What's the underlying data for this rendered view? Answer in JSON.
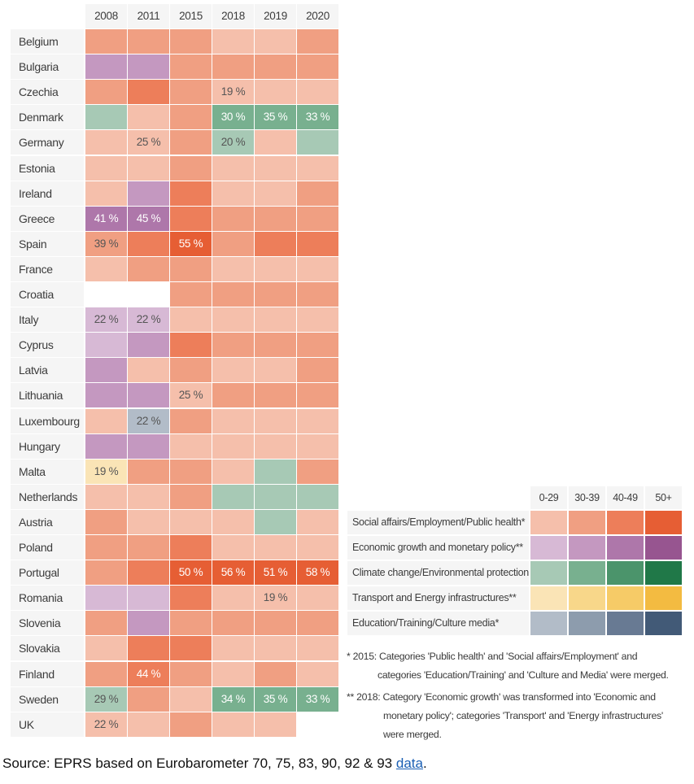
{
  "chart_data": {
    "type": "heatmap",
    "columns": [
      "2008",
      "2011",
      "2015",
      "2018",
      "2019",
      "2020"
    ],
    "rows": [
      "Belgium",
      "Bulgaria",
      "Czechia",
      "Denmark",
      "Germany",
      "Estonia",
      "Ireland",
      "Greece",
      "Spain",
      "France",
      "Croatia",
      "Italy",
      "Cyprus",
      "Latvia",
      "Lithuania",
      "Luxembourg",
      "Hungary",
      "Malta",
      "Netherlands",
      "Austria",
      "Poland",
      "Portugal",
      "Romania",
      "Slovenia",
      "Slovakia",
      "Finland",
      "Sweden",
      "UK"
    ],
    "cell_encoding": "[category, band index, printed label]; null = no data",
    "cells": [
      [
        [
          "S",
          1,
          ""
        ],
        [
          "S",
          1,
          ""
        ],
        [
          "S",
          1,
          ""
        ],
        [
          "S",
          0,
          ""
        ],
        [
          "S",
          0,
          ""
        ],
        [
          "S",
          1,
          ""
        ]
      ],
      [
        [
          "E",
          1,
          ""
        ],
        [
          "E",
          1,
          ""
        ],
        [
          "S",
          1,
          ""
        ],
        [
          "S",
          1,
          ""
        ],
        [
          "S",
          1,
          ""
        ],
        [
          "S",
          1,
          ""
        ]
      ],
      [
        [
          "S",
          1,
          ""
        ],
        [
          "S",
          2,
          ""
        ],
        [
          "S",
          1,
          ""
        ],
        [
          "S",
          0,
          "19 %"
        ],
        [
          "S",
          0,
          ""
        ],
        [
          "S",
          0,
          ""
        ]
      ],
      [
        [
          "C",
          0,
          ""
        ],
        [
          "S",
          0,
          ""
        ],
        [
          "S",
          1,
          ""
        ],
        [
          "C",
          1,
          "30 %"
        ],
        [
          "C",
          1,
          "35 %"
        ],
        [
          "C",
          1,
          "33 %"
        ]
      ],
      [
        [
          "S",
          0,
          ""
        ],
        [
          "S",
          0,
          "25 %"
        ],
        [
          "S",
          1,
          ""
        ],
        [
          "C",
          0,
          "20 %"
        ],
        [
          "S",
          0,
          ""
        ],
        [
          "C",
          0,
          ""
        ]
      ],
      [
        [
          "S",
          0,
          ""
        ],
        [
          "S",
          0,
          ""
        ],
        [
          "S",
          1,
          ""
        ],
        [
          "S",
          0,
          ""
        ],
        [
          "S",
          0,
          ""
        ],
        [
          "S",
          0,
          ""
        ]
      ],
      [
        [
          "S",
          0,
          ""
        ],
        [
          "E",
          1,
          ""
        ],
        [
          "S",
          2,
          ""
        ],
        [
          "S",
          0,
          ""
        ],
        [
          "S",
          0,
          ""
        ],
        [
          "S",
          1,
          ""
        ]
      ],
      [
        [
          "E",
          2,
          "41 %"
        ],
        [
          "E",
          2,
          "45 %"
        ],
        [
          "S",
          2,
          ""
        ],
        [
          "S",
          1,
          ""
        ],
        [
          "S",
          1,
          ""
        ],
        [
          "S",
          1,
          ""
        ]
      ],
      [
        [
          "S",
          1,
          "39 %"
        ],
        [
          "S",
          2,
          ""
        ],
        [
          "S",
          3,
          "55 %"
        ],
        [
          "S",
          1,
          ""
        ],
        [
          "S",
          2,
          ""
        ],
        [
          "S",
          2,
          ""
        ]
      ],
      [
        [
          "S",
          0,
          ""
        ],
        [
          "S",
          1,
          ""
        ],
        [
          "S",
          1,
          ""
        ],
        [
          "S",
          0,
          ""
        ],
        [
          "S",
          0,
          ""
        ],
        [
          "S",
          0,
          ""
        ]
      ],
      [
        null,
        null,
        [
          "S",
          1,
          ""
        ],
        [
          "S",
          1,
          ""
        ],
        [
          "S",
          1,
          ""
        ],
        [
          "S",
          1,
          ""
        ]
      ],
      [
        [
          "E",
          0,
          "22 %"
        ],
        [
          "E",
          0,
          "22 %"
        ],
        [
          "S",
          0,
          ""
        ],
        [
          "S",
          0,
          ""
        ],
        [
          "S",
          0,
          ""
        ],
        [
          "S",
          0,
          ""
        ]
      ],
      [
        [
          "E",
          0,
          ""
        ],
        [
          "E",
          1,
          ""
        ],
        [
          "S",
          2,
          ""
        ],
        [
          "S",
          1,
          ""
        ],
        [
          "S",
          1,
          ""
        ],
        [
          "S",
          1,
          ""
        ]
      ],
      [
        [
          "E",
          1,
          ""
        ],
        [
          "S",
          0,
          ""
        ],
        [
          "S",
          1,
          ""
        ],
        [
          "S",
          0,
          ""
        ],
        [
          "S",
          0,
          ""
        ],
        [
          "S",
          1,
          ""
        ]
      ],
      [
        [
          "E",
          1,
          ""
        ],
        [
          "E",
          1,
          ""
        ],
        [
          "S",
          0,
          "25 %"
        ],
        [
          "S",
          1,
          ""
        ],
        [
          "S",
          1,
          ""
        ],
        [
          "S",
          1,
          ""
        ]
      ],
      [
        [
          "S",
          0,
          ""
        ],
        [
          "D",
          0,
          "22 %"
        ],
        [
          "S",
          1,
          ""
        ],
        [
          "S",
          0,
          ""
        ],
        [
          "S",
          0,
          ""
        ],
        [
          "S",
          0,
          ""
        ]
      ],
      [
        [
          "E",
          1,
          ""
        ],
        [
          "E",
          1,
          ""
        ],
        [
          "S",
          0,
          ""
        ],
        [
          "S",
          0,
          ""
        ],
        [
          "S",
          0,
          ""
        ],
        [
          "S",
          0,
          ""
        ]
      ],
      [
        [
          "T",
          0,
          "19 %"
        ],
        [
          "S",
          1,
          ""
        ],
        [
          "S",
          1,
          ""
        ],
        [
          "S",
          0,
          ""
        ],
        [
          "C",
          0,
          ""
        ],
        [
          "S",
          1,
          ""
        ]
      ],
      [
        [
          "S",
          0,
          ""
        ],
        [
          "S",
          0,
          ""
        ],
        [
          "S",
          1,
          ""
        ],
        [
          "C",
          0,
          ""
        ],
        [
          "C",
          0,
          ""
        ],
        [
          "C",
          0,
          ""
        ]
      ],
      [
        [
          "S",
          1,
          ""
        ],
        [
          "S",
          0,
          ""
        ],
        [
          "S",
          0,
          ""
        ],
        [
          "S",
          0,
          ""
        ],
        [
          "C",
          0,
          ""
        ],
        [
          "S",
          0,
          ""
        ]
      ],
      [
        [
          "S",
          1,
          ""
        ],
        [
          "S",
          1,
          ""
        ],
        [
          "S",
          2,
          ""
        ],
        [
          "S",
          0,
          ""
        ],
        [
          "S",
          0,
          ""
        ],
        [
          "S",
          0,
          ""
        ]
      ],
      [
        [
          "S",
          1,
          ""
        ],
        [
          "S",
          2,
          ""
        ],
        [
          "S",
          3,
          "50 %"
        ],
        [
          "S",
          3,
          "56 %"
        ],
        [
          "S",
          3,
          "51 %"
        ],
        [
          "S",
          3,
          "58 %"
        ]
      ],
      [
        [
          "E",
          0,
          ""
        ],
        [
          "E",
          0,
          ""
        ],
        [
          "S",
          2,
          ""
        ],
        [
          "S",
          0,
          ""
        ],
        [
          "S",
          0,
          "19 %"
        ],
        [
          "S",
          0,
          ""
        ]
      ],
      [
        [
          "S",
          1,
          ""
        ],
        [
          "E",
          1,
          ""
        ],
        [
          "S",
          1,
          ""
        ],
        [
          "S",
          1,
          ""
        ],
        [
          "S",
          1,
          ""
        ],
        [
          "S",
          1,
          ""
        ]
      ],
      [
        [
          "S",
          0,
          ""
        ],
        [
          "S",
          2,
          ""
        ],
        [
          "S",
          2,
          ""
        ],
        [
          "S",
          0,
          ""
        ],
        [
          "S",
          0,
          ""
        ],
        [
          "S",
          0,
          ""
        ]
      ],
      [
        [
          "S",
          1,
          ""
        ],
        [
          "S",
          2,
          "44 %"
        ],
        [
          "S",
          1,
          ""
        ],
        [
          "S",
          0,
          ""
        ],
        [
          "S",
          1,
          ""
        ],
        [
          "S",
          0,
          ""
        ]
      ],
      [
        [
          "C",
          0,
          "29 %"
        ],
        [
          "S",
          1,
          ""
        ],
        [
          "S",
          0,
          ""
        ],
        [
          "C",
          1,
          "34 %"
        ],
        [
          "C",
          1,
          "35 %"
        ],
        [
          "C",
          1,
          "33 %"
        ]
      ],
      [
        [
          "S",
          0,
          "22 %"
        ],
        [
          "S",
          0,
          ""
        ],
        [
          "S",
          1,
          ""
        ],
        [
          "S",
          0,
          ""
        ],
        [
          "S",
          0,
          ""
        ],
        null
      ]
    ],
    "legend": {
      "bands": [
        "0-29",
        "30-39",
        "40-49",
        "50+"
      ],
      "categories": [
        {
          "key": "S",
          "label": "Social affairs/Employment/Public health*",
          "colors": [
            "#f5bfab",
            "#f09f82",
            "#ed7e5a",
            "#e65e34"
          ]
        },
        {
          "key": "E",
          "label": "Economic growth and monetary policy**",
          "colors": [
            "#d7b9d5",
            "#c498c0",
            "#ae77aa",
            "#975590"
          ]
        },
        {
          "key": "C",
          "label": "Climate change/Environmental protection",
          "colors": [
            "#a7c9b5",
            "#78b08f",
            "#4b946b",
            "#207848"
          ]
        },
        {
          "key": "T",
          "label": "Transport and Energy infrastructures**",
          "colors": [
            "#fae4b6",
            "#f8d78a",
            "#f6cb67",
            "#f3bb41"
          ]
        },
        {
          "key": "D",
          "label": "Education/Training/Culture media*",
          "colors": [
            "#b2bcc8",
            "#8d9cad",
            "#687a93",
            "#425a77"
          ]
        }
      ]
    }
  },
  "notes": {
    "n1_line1": "* 2015: Categories 'Public health' and 'Social affairs/Employment' and",
    "n1_line2": "categories 'Education/Training' and 'Culture and Media' were merged.",
    "n2_line1": "** 2018: Category 'Economic growth' was transformed into 'Economic and",
    "n2_line2": "monetary policy'; categories 'Transport' and 'Energy infrastructures'",
    "n2_line3": "were merged."
  },
  "source": {
    "text": "Source: EPRS based on Eurobarometer 70, 75, 83, 90, 92 & 93 ",
    "link": "data",
    "after": "."
  }
}
